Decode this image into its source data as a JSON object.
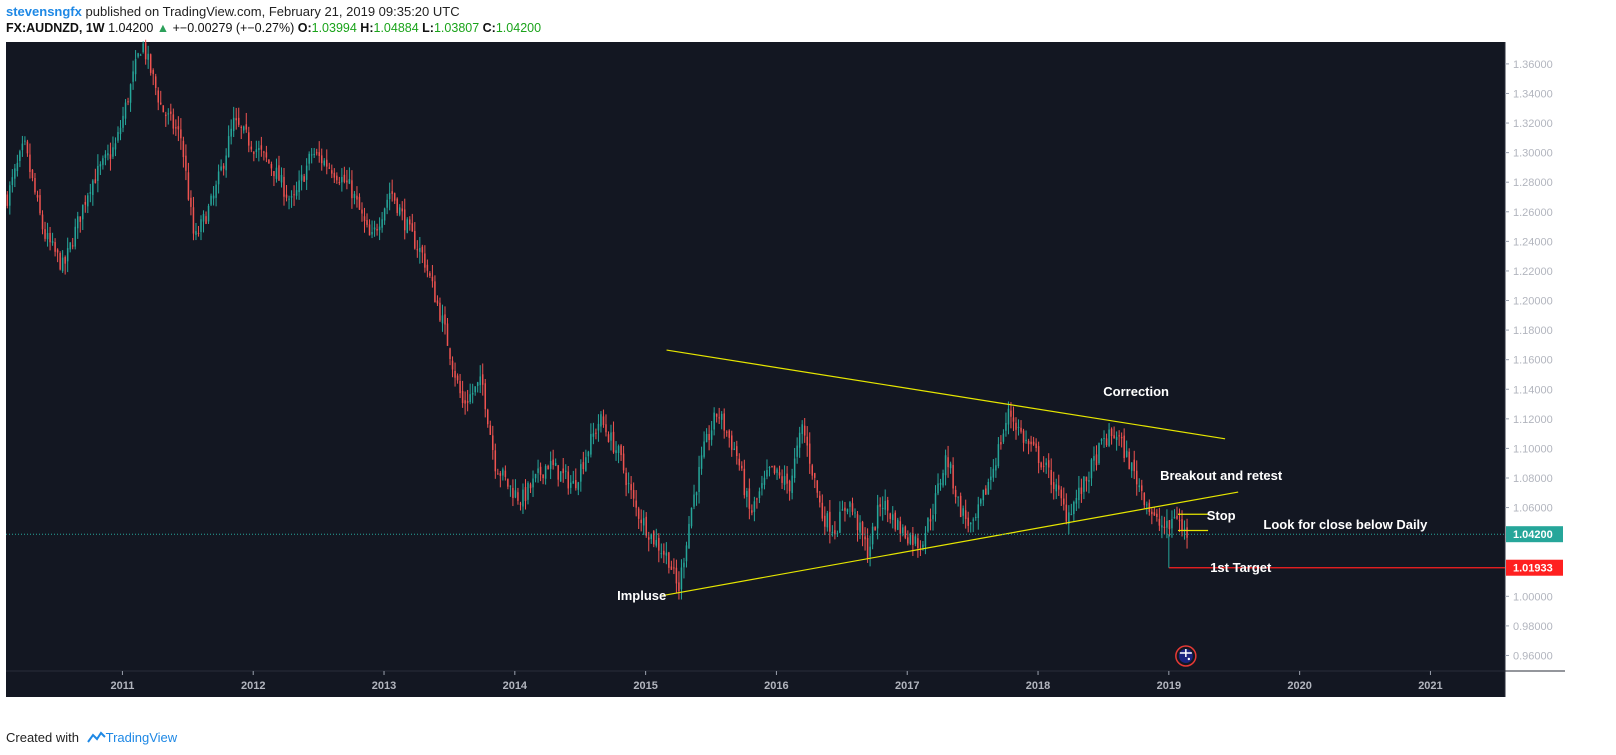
{
  "header": {
    "author": "stevensngfx",
    "published_text": "published on TradingView.com, February 21, 2019 09:35:20 UTC",
    "symbol": "FX:AUDNZD, 1W",
    "price": "1.04200",
    "change_arrow": "▲",
    "change": "+−0.00279 (+−0.27%)",
    "o_label": "O:",
    "o_value": "1.03994",
    "h_label": "H:",
    "h_value": "1.04884",
    "l_label": "L:",
    "l_value": "1.03807",
    "c_label": "C:",
    "c_value": "1.04200"
  },
  "footer": {
    "created_with": "Created with",
    "brand": "TradingView",
    "logo_icon": "tradingview-cloud-icon"
  },
  "colors": {
    "background": "#131722",
    "up_candle": "#26a69a",
    "down_candle": "#ef5350",
    "trendline": "#e6e600",
    "target_line": "#ff2020",
    "price_line": "#26a69a",
    "flag_ring": "#e53935"
  },
  "chart_data": {
    "type": "candlestick",
    "symbol": "FX:AUDNZD",
    "interval": "1W",
    "ylim": [
      0.9495,
      1.3748
    ],
    "y_ticks": [
      "1.36000",
      "1.34000",
      "1.32000",
      "1.30000",
      "1.28000",
      "1.26000",
      "1.24000",
      "1.22000",
      "1.20000",
      "1.18000",
      "1.16000",
      "1.14000",
      "1.12000",
      "1.10000",
      "1.08000",
      "1.06000",
      "1.04000",
      "1.02000",
      "1.00000",
      "0.98000",
      "0.96000"
    ],
    "x_ticks": [
      "2011",
      "2012",
      "2013",
      "2014",
      "2015",
      "2016",
      "2017",
      "2018",
      "2019",
      "2020",
      "2021"
    ],
    "x_range": [
      2010.11,
      2021.57
    ],
    "price_path": [
      [
        2010.12,
        1.27
      ],
      [
        2010.25,
        1.305
      ],
      [
        2010.4,
        1.245
      ],
      [
        2010.55,
        1.222
      ],
      [
        2010.75,
        1.278
      ],
      [
        2010.95,
        1.305
      ],
      [
        2011.15,
        1.375
      ],
      [
        2011.3,
        1.33
      ],
      [
        2011.45,
        1.31
      ],
      [
        2011.55,
        1.24
      ],
      [
        2011.7,
        1.27
      ],
      [
        2011.85,
        1.32
      ],
      [
        2012.0,
        1.305
      ],
      [
        2012.15,
        1.29
      ],
      [
        2012.3,
        1.265
      ],
      [
        2012.45,
        1.3
      ],
      [
        2012.6,
        1.29
      ],
      [
        2012.75,
        1.275
      ],
      [
        2012.9,
        1.24
      ],
      [
        2013.05,
        1.275
      ],
      [
        2013.2,
        1.245
      ],
      [
        2013.3,
        1.23
      ],
      [
        2013.45,
        1.185
      ],
      [
        2013.6,
        1.13
      ],
      [
        2013.75,
        1.145
      ],
      [
        2013.85,
        1.09
      ],
      [
        2013.95,
        1.075
      ],
      [
        2014.05,
        1.065
      ],
      [
        2014.25,
        1.09
      ],
      [
        2014.45,
        1.075
      ],
      [
        2014.65,
        1.12
      ],
      [
        2014.8,
        1.095
      ],
      [
        2014.92,
        1.06
      ],
      [
        2015.05,
        1.04
      ],
      [
        2015.18,
        1.025
      ],
      [
        2015.25,
        1.003
      ],
      [
        2015.35,
        1.06
      ],
      [
        2015.45,
        1.1
      ],
      [
        2015.55,
        1.125
      ],
      [
        2015.7,
        1.095
      ],
      [
        2015.8,
        1.055
      ],
      [
        2015.95,
        1.085
      ],
      [
        2016.1,
        1.075
      ],
      [
        2016.2,
        1.115
      ],
      [
        2016.35,
        1.055
      ],
      [
        2016.45,
        1.045
      ],
      [
        2016.55,
        1.065
      ],
      [
        2016.7,
        1.03
      ],
      [
        2016.8,
        1.065
      ],
      [
        2016.95,
        1.045
      ],
      [
        2017.1,
        1.035
      ],
      [
        2017.2,
        1.06
      ],
      [
        2017.3,
        1.095
      ],
      [
        2017.4,
        1.06
      ],
      [
        2017.5,
        1.045
      ],
      [
        2017.65,
        1.085
      ],
      [
        2017.78,
        1.125
      ],
      [
        2017.9,
        1.105
      ],
      [
        2018.0,
        1.095
      ],
      [
        2018.1,
        1.08
      ],
      [
        2018.22,
        1.055
      ],
      [
        2018.35,
        1.075
      ],
      [
        2018.5,
        1.105
      ],
      [
        2018.6,
        1.11
      ],
      [
        2018.7,
        1.09
      ],
      [
        2018.8,
        1.07
      ],
      [
        2018.9,
        1.05
      ],
      [
        2019.0,
        1.045
      ],
      [
        2019.05,
        1.058
      ],
      [
        2019.1,
        1.045
      ],
      [
        2019.14,
        1.042
      ]
    ],
    "last_price": 1.042,
    "last_price_label": "1.04200",
    "target_price": 1.01933,
    "target_price_label": "1.01933",
    "drawings": [
      {
        "kind": "trendline",
        "points": [
          [
            2015.16,
            1.1665
          ],
          [
            2019.43,
            1.1065
          ]
        ]
      },
      {
        "kind": "trendline",
        "points": [
          [
            2015.13,
            1.0005
          ],
          [
            2019.53,
            1.0705
          ]
        ]
      },
      {
        "kind": "box",
        "points": [
          [
            2019.07,
            1.0555
          ],
          [
            2019.3,
            1.0555
          ]
        ]
      },
      {
        "kind": "box",
        "points": [
          [
            2019.07,
            1.0445
          ],
          [
            2019.3,
            1.0445
          ]
        ]
      },
      {
        "kind": "target",
        "points": [
          [
            2019.0,
            1.0193
          ],
          [
            2021.57,
            1.0193
          ]
        ]
      }
    ],
    "annotations": [
      {
        "text": "Correction",
        "x": 2018.75,
        "y": 1.1355
      },
      {
        "text": "Breakout and retest",
        "x": 2019.4,
        "y": 1.0785
      },
      {
        "text": "Stop",
        "x": 2019.4,
        "y": 1.0515
      },
      {
        "text": "Look for close below Daily",
        "x": 2020.35,
        "y": 1.0455
      },
      {
        "text": "1st Target",
        "x": 2019.55,
        "y": 1.0165
      },
      {
        "text": "Impluse",
        "x": 2014.97,
        "y": 0.9975
      }
    ],
    "event_flag": {
      "x": 2019.13,
      "icon": "australia-flag-icon"
    }
  }
}
